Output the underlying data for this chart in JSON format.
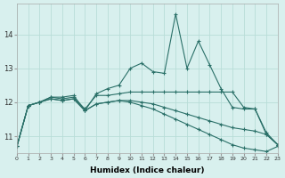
{
  "x": [
    0,
    1,
    2,
    3,
    4,
    5,
    6,
    7,
    8,
    9,
    10,
    11,
    12,
    13,
    14,
    15,
    16,
    17,
    18,
    19,
    20,
    21,
    22,
    23
  ],
  "line1": [
    10.7,
    11.9,
    12.0,
    12.15,
    12.15,
    12.2,
    11.75,
    12.25,
    12.4,
    12.5,
    13.0,
    13.15,
    12.9,
    12.85,
    14.6,
    13.0,
    13.8,
    13.1,
    12.4,
    11.85,
    11.8,
    11.8,
    11.1,
    10.75
  ],
  "line2": [
    10.7,
    11.9,
    12.0,
    12.15,
    12.1,
    12.15,
    11.8,
    12.2,
    12.2,
    12.25,
    12.3,
    12.3,
    12.3,
    12.3,
    12.3,
    12.3,
    12.3,
    12.3,
    12.3,
    12.3,
    11.85,
    11.8,
    11.05,
    10.75
  ],
  "line3": [
    10.7,
    11.9,
    12.0,
    12.1,
    12.05,
    12.1,
    11.75,
    11.95,
    12.0,
    12.05,
    12.05,
    12.0,
    11.95,
    11.85,
    11.75,
    11.65,
    11.55,
    11.45,
    11.35,
    11.25,
    11.2,
    11.15,
    11.05,
    10.75
  ],
  "line4": [
    10.7,
    11.9,
    12.0,
    12.1,
    12.05,
    12.1,
    11.75,
    11.95,
    12.0,
    12.05,
    12.0,
    11.9,
    11.8,
    11.65,
    11.5,
    11.35,
    11.2,
    11.05,
    10.9,
    10.75,
    10.65,
    10.6,
    10.55,
    10.7
  ],
  "color": "#2a7068",
  "bg_color": "#d8f0ee",
  "grid_color": "#b8ddd8",
  "xlabel": "Humidex (Indice chaleur)",
  "yticks": [
    11,
    12,
    13,
    14
  ],
  "xticks": [
    0,
    1,
    2,
    3,
    4,
    5,
    6,
    7,
    8,
    9,
    10,
    11,
    12,
    13,
    14,
    15,
    16,
    17,
    18,
    19,
    20,
    21,
    22,
    23
  ],
  "xlim": [
    0,
    23
  ],
  "ylim": [
    10.5,
    14.9
  ]
}
